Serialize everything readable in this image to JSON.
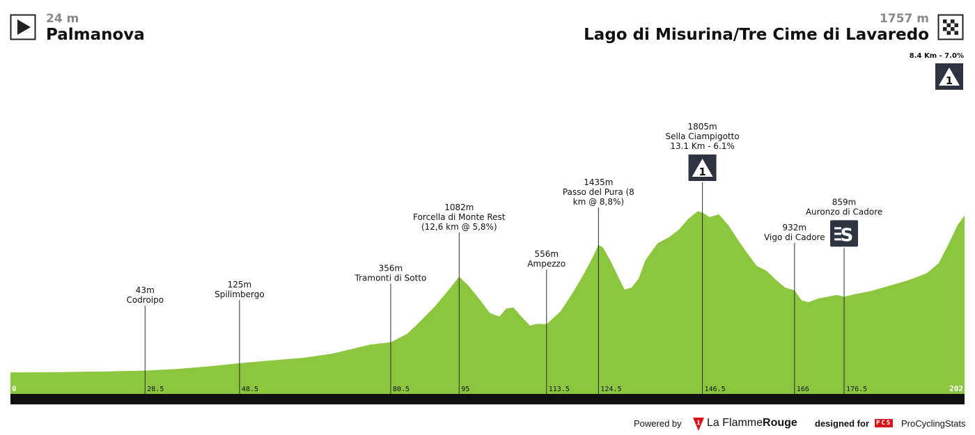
{
  "header": {
    "start": {
      "elevation": "24 m",
      "name": "Palmanova",
      "icon": "play-icon"
    },
    "finish": {
      "elevation": "1757 m",
      "name": "Lago di Misurina/Tre Cime di Lavaredo",
      "icon": "checkered-flag-icon"
    },
    "finish_climb": {
      "label": "8.4 Km - 7.0%",
      "category": "1",
      "icon": "climb-category-icon"
    }
  },
  "chart_data": {
    "type": "area",
    "x_unit": "km",
    "y_unit": "m",
    "xlim": [
      0,
      202
    ],
    "fill_color": "#8cc63f",
    "profile": [
      [
        0,
        24
      ],
      [
        10,
        26
      ],
      [
        20,
        34
      ],
      [
        28.5,
        43
      ],
      [
        35,
        60
      ],
      [
        42,
        90
      ],
      [
        48.5,
        125
      ],
      [
        55,
        155
      ],
      [
        62,
        185
      ],
      [
        68,
        230
      ],
      [
        73,
        290
      ],
      [
        76,
        330
      ],
      [
        80.5,
        356
      ],
      [
        84,
        450
      ],
      [
        87,
        600
      ],
      [
        90,
        760
      ],
      [
        93,
        950
      ],
      [
        95,
        1082
      ],
      [
        97,
        980
      ],
      [
        99.5,
        820
      ],
      [
        101.5,
        680
      ],
      [
        103.5,
        640
      ],
      [
        105,
        730
      ],
      [
        106.5,
        740
      ],
      [
        108,
        650
      ],
      [
        110,
        540
      ],
      [
        111.5,
        560
      ],
      [
        113.5,
        556
      ],
      [
        116.5,
        700
      ],
      [
        119,
        900
      ],
      [
        121.5,
        1120
      ],
      [
        123.5,
        1320
      ],
      [
        124.5,
        1435
      ],
      [
        125.5,
        1400
      ],
      [
        127,
        1260
      ],
      [
        128.5,
        1100
      ],
      [
        130,
        940
      ],
      [
        131.5,
        960
      ],
      [
        133,
        1060
      ],
      [
        134.5,
        1270
      ],
      [
        137,
        1450
      ],
      [
        139.5,
        1520
      ],
      [
        141.5,
        1600
      ],
      [
        143.5,
        1720
      ],
      [
        145.5,
        1805
      ],
      [
        146.5,
        1790
      ],
      [
        148,
        1740
      ],
      [
        150,
        1770
      ],
      [
        152,
        1650
      ],
      [
        154,
        1490
      ],
      [
        156,
        1340
      ],
      [
        158,
        1200
      ],
      [
        160,
        1150
      ],
      [
        162,
        1050
      ],
      [
        164,
        960
      ],
      [
        166,
        932
      ],
      [
        167.5,
        820
      ],
      [
        169,
        800
      ],
      [
        171,
        840
      ],
      [
        173,
        860
      ],
      [
        175,
        880
      ],
      [
        176.5,
        859
      ],
      [
        179,
        890
      ],
      [
        182,
        920
      ],
      [
        186,
        980
      ],
      [
        190,
        1040
      ],
      [
        194,
        1120
      ],
      [
        196.5,
        1230
      ],
      [
        198.5,
        1430
      ],
      [
        200.5,
        1650
      ],
      [
        202,
        1757
      ]
    ],
    "markers": [
      {
        "km": 28.5,
        "tick": "28.5",
        "elevation": "43m",
        "name": "Codroipo"
      },
      {
        "km": 48.5,
        "tick": "48.5",
        "elevation": "125m",
        "name": "Spilimbergo"
      },
      {
        "km": 80.5,
        "tick": "80.5",
        "elevation": "356m",
        "name": "Tramonti di Sotto"
      },
      {
        "km": 95,
        "tick": "95",
        "elevation": "1082m",
        "name": "Forcella di Monte Rest",
        "detail": "(12,6 km @ 5,8%)"
      },
      {
        "km": 113.5,
        "tick": "113.5",
        "elevation": "556m",
        "name": "Ampezzo"
      },
      {
        "km": 124.5,
        "tick": "124.5",
        "elevation": "1435m",
        "name": "Passo del Pura (8",
        "detail": "km @ 8,8%)"
      },
      {
        "km": 146.5,
        "tick": "146.5",
        "elevation": "1805m",
        "name": "Sella Ciampigotto",
        "detail": "13.1 Km - 6.1%",
        "badge": "1"
      },
      {
        "km": 166,
        "tick": "166",
        "elevation": "932m",
        "name": "Vigo di Cadore"
      },
      {
        "km": 176.5,
        "tick": "176.5",
        "elevation": "859m",
        "name": "Auronzo di Cadore",
        "badge_icon": "sprint-icon"
      }
    ],
    "axis_start": "0",
    "axis_end": "202",
    "grid": false
  },
  "footer": {
    "powered_by": "Powered by",
    "brand_a": "La Flamme",
    "brand_b": "Rouge",
    "designed_for": "designed for",
    "pcs": "PCS",
    "brand_c": "ProCyclingStats"
  }
}
